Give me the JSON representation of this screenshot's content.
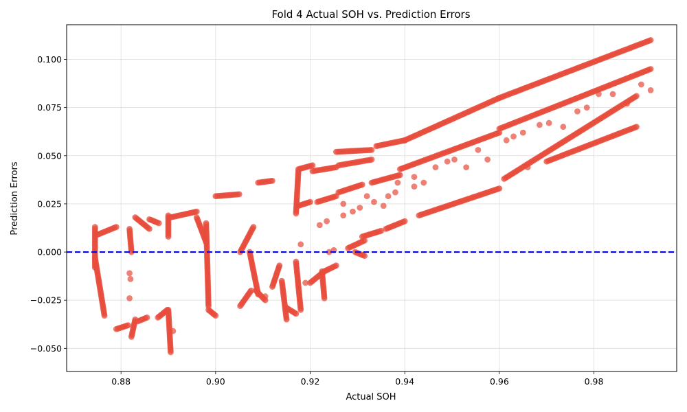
{
  "chart_data": {
    "type": "scatter",
    "title": "Fold 4 Actual SOH vs. Prediction Errors",
    "xlabel": "Actual SOH",
    "ylabel": "Prediction Errors",
    "xlim": [
      0.8685,
      0.9975
    ],
    "ylim": [
      -0.062,
      0.118
    ],
    "xticks": [
      0.88,
      0.9,
      0.92,
      0.94,
      0.96,
      0.98
    ],
    "xtick_labels": [
      "0.88",
      "0.90",
      "0.92",
      "0.94",
      "0.96",
      "0.98"
    ],
    "yticks": [
      -0.05,
      -0.025,
      0.0,
      0.025,
      0.05,
      0.075,
      0.1
    ],
    "ytick_labels": [
      "−0.050",
      "−0.025",
      "0.000",
      "0.025",
      "0.050",
      "0.075",
      "0.100"
    ],
    "grid": true,
    "point_color": "#e74c3c",
    "reference_line": {
      "y": 0.0,
      "color": "#0000ff",
      "style": "dashed"
    },
    "segments": [
      {
        "x": [
          0.8745,
          0.8745
        ],
        "y": [
          -0.008,
          0.013
        ]
      },
      {
        "x": [
          0.8745,
          0.8765
        ],
        "y": [
          -0.003,
          -0.033
        ]
      },
      {
        "x": [
          0.875,
          0.879
        ],
        "y": [
          0.009,
          0.013
        ]
      },
      {
        "x": [
          0.879,
          0.8815
        ],
        "y": [
          -0.04,
          -0.038
        ]
      },
      {
        "x": [
          0.8818,
          0.8822
        ],
        "y": [
          0.012,
          0.0
        ]
      },
      {
        "x": [
          0.8822,
          0.883
        ],
        "y": [
          -0.044,
          -0.035
        ]
      },
      {
        "x": [
          0.883,
          0.886
        ],
        "y": [
          0.018,
          0.012
        ]
      },
      {
        "x": [
          0.8835,
          0.8855
        ],
        "y": [
          -0.036,
          -0.034
        ]
      },
      {
        "x": [
          0.886,
          0.888
        ],
        "y": [
          0.017,
          0.015
        ]
      },
      {
        "x": [
          0.8878,
          0.8898
        ],
        "y": [
          -0.034,
          -0.03
        ]
      },
      {
        "x": [
          0.89,
          0.89
        ],
        "y": [
          0.019,
          0.008
        ]
      },
      {
        "x": [
          0.89,
          0.8905
        ],
        "y": [
          -0.03,
          -0.052
        ]
      },
      {
        "x": [
          0.8905,
          0.896
        ],
        "y": [
          0.018,
          0.021
        ]
      },
      {
        "x": [
          0.896,
          0.898
        ],
        "y": [
          0.018,
          0.005
        ]
      },
      {
        "x": [
          0.898,
          0.8985
        ],
        "y": [
          0.015,
          -0.028
        ]
      },
      {
        "x": [
          0.8985,
          0.9
        ],
        "y": [
          -0.03,
          -0.033
        ]
      },
      {
        "x": [
          0.9,
          0.905
        ],
        "y": [
          0.029,
          0.03
        ]
      },
      {
        "x": [
          0.9052,
          0.908
        ],
        "y": [
          0.0,
          0.013
        ]
      },
      {
        "x": [
          0.9052,
          0.9075
        ],
        "y": [
          -0.028,
          -0.02
        ]
      },
      {
        "x": [
          0.9072,
          0.909
        ],
        "y": [
          0.0,
          -0.022
        ]
      },
      {
        "x": [
          0.9085,
          0.9105
        ],
        "y": [
          -0.02,
          -0.025
        ]
      },
      {
        "x": [
          0.909,
          0.912
        ],
        "y": [
          0.036,
          0.037
        ]
      },
      {
        "x": [
          0.912,
          0.9135
        ],
        "y": [
          -0.018,
          -0.007
        ]
      },
      {
        "x": [
          0.914,
          0.915
        ],
        "y": [
          -0.015,
          -0.035
        ]
      },
      {
        "x": [
          0.915,
          0.917
        ],
        "y": [
          -0.029,
          -0.032
        ]
      },
      {
        "x": [
          0.917,
          0.9175
        ],
        "y": [
          0.02,
          0.042
        ]
      },
      {
        "x": [
          0.917,
          0.918
        ],
        "y": [
          -0.005,
          -0.03
        ]
      },
      {
        "x": [
          0.9175,
          0.92
        ],
        "y": [
          0.024,
          0.026
        ]
      },
      {
        "x": [
          0.9175,
          0.9205
        ],
        "y": [
          0.043,
          0.045
        ]
      },
      {
        "x": [
          0.92,
          0.923
        ],
        "y": [
          -0.016,
          -0.01
        ]
      },
      {
        "x": [
          0.9225,
          0.923
        ],
        "y": [
          -0.01,
          -0.024
        ]
      },
      {
        "x": [
          0.9205,
          0.9255
        ],
        "y": [
          0.042,
          0.044
        ]
      },
      {
        "x": [
          0.9215,
          0.9255
        ],
        "y": [
          0.026,
          0.029
        ]
      },
      {
        "x": [
          0.923,
          0.9255
        ],
        "y": [
          -0.01,
          -0.007
        ]
      },
      {
        "x": [
          0.9255,
          0.933
        ],
        "y": [
          0.052,
          0.053
        ]
      },
      {
        "x": [
          0.926,
          0.933
        ],
        "y": [
          0.045,
          0.048
        ]
      },
      {
        "x": [
          0.926,
          0.931
        ],
        "y": [
          0.031,
          0.035
        ]
      },
      {
        "x": [
          0.928,
          0.9315
        ],
        "y": [
          0.002,
          0.006
        ]
      },
      {
        "x": [
          0.9295,
          0.9315
        ],
        "y": [
          0.0,
          -0.002
        ]
      },
      {
        "x": [
          0.931,
          0.935
        ],
        "y": [
          0.008,
          0.011
        ]
      },
      {
        "x": [
          0.934,
          0.94
        ],
        "y": [
          0.055,
          0.058
        ]
      },
      {
        "x": [
          0.933,
          0.939
        ],
        "y": [
          0.036,
          0.04
        ]
      },
      {
        "x": [
          0.936,
          0.94
        ],
        "y": [
          0.012,
          0.016
        ]
      },
      {
        "x": [
          0.94,
          0.96
        ],
        "y": [
          0.058,
          0.08
        ]
      },
      {
        "x": [
          0.939,
          0.96
        ],
        "y": [
          0.043,
          0.062
        ]
      },
      {
        "x": [
          0.943,
          0.96
        ],
        "y": [
          0.019,
          0.033
        ]
      },
      {
        "x": [
          0.96,
          0.992
        ],
        "y": [
          0.08,
          0.11
        ]
      },
      {
        "x": [
          0.96,
          0.992
        ],
        "y": [
          0.064,
          0.095
        ]
      },
      {
        "x": [
          0.961,
          0.989
        ],
        "y": [
          0.038,
          0.081
        ]
      },
      {
        "x": [
          0.97,
          0.989
        ],
        "y": [
          0.047,
          0.065
        ]
      }
    ],
    "outliers": [
      {
        "x": 0.8818,
        "y": -0.011
      },
      {
        "x": 0.882,
        "y": -0.014
      },
      {
        "x": 0.8818,
        "y": -0.024
      },
      {
        "x": 0.891,
        "y": -0.041
      },
      {
        "x": 0.9105,
        "y": -0.023
      },
      {
        "x": 0.918,
        "y": 0.004
      },
      {
        "x": 0.919,
        "y": -0.016
      },
      {
        "x": 0.922,
        "y": 0.014
      },
      {
        "x": 0.9235,
        "y": 0.016
      },
      {
        "x": 0.924,
        "y": 0.0
      },
      {
        "x": 0.925,
        "y": 0.001
      },
      {
        "x": 0.927,
        "y": 0.025
      },
      {
        "x": 0.927,
        "y": 0.019
      },
      {
        "x": 0.929,
        "y": 0.021
      },
      {
        "x": 0.9305,
        "y": 0.023
      },
      {
        "x": 0.932,
        "y": 0.029
      },
      {
        "x": 0.9335,
        "y": 0.026
      },
      {
        "x": 0.9355,
        "y": 0.024
      },
      {
        "x": 0.9365,
        "y": 0.029
      },
      {
        "x": 0.938,
        "y": 0.031
      },
      {
        "x": 0.9385,
        "y": 0.036
      },
      {
        "x": 0.942,
        "y": 0.039
      },
      {
        "x": 0.942,
        "y": 0.034
      },
      {
        "x": 0.944,
        "y": 0.036
      },
      {
        "x": 0.9465,
        "y": 0.044
      },
      {
        "x": 0.949,
        "y": 0.047
      },
      {
        "x": 0.9505,
        "y": 0.048
      },
      {
        "x": 0.953,
        "y": 0.044
      },
      {
        "x": 0.9555,
        "y": 0.053
      },
      {
        "x": 0.9575,
        "y": 0.048
      },
      {
        "x": 0.9615,
        "y": 0.058
      },
      {
        "x": 0.963,
        "y": 0.06
      },
      {
        "x": 0.965,
        "y": 0.062
      },
      {
        "x": 0.966,
        "y": 0.044
      },
      {
        "x": 0.9685,
        "y": 0.066
      },
      {
        "x": 0.9705,
        "y": 0.067
      },
      {
        "x": 0.9735,
        "y": 0.065
      },
      {
        "x": 0.9765,
        "y": 0.073
      },
      {
        "x": 0.9785,
        "y": 0.075
      },
      {
        "x": 0.981,
        "y": 0.082
      },
      {
        "x": 0.984,
        "y": 0.082
      },
      {
        "x": 0.987,
        "y": 0.077
      },
      {
        "x": 0.99,
        "y": 0.087
      },
      {
        "x": 0.992,
        "y": 0.084
      }
    ]
  }
}
